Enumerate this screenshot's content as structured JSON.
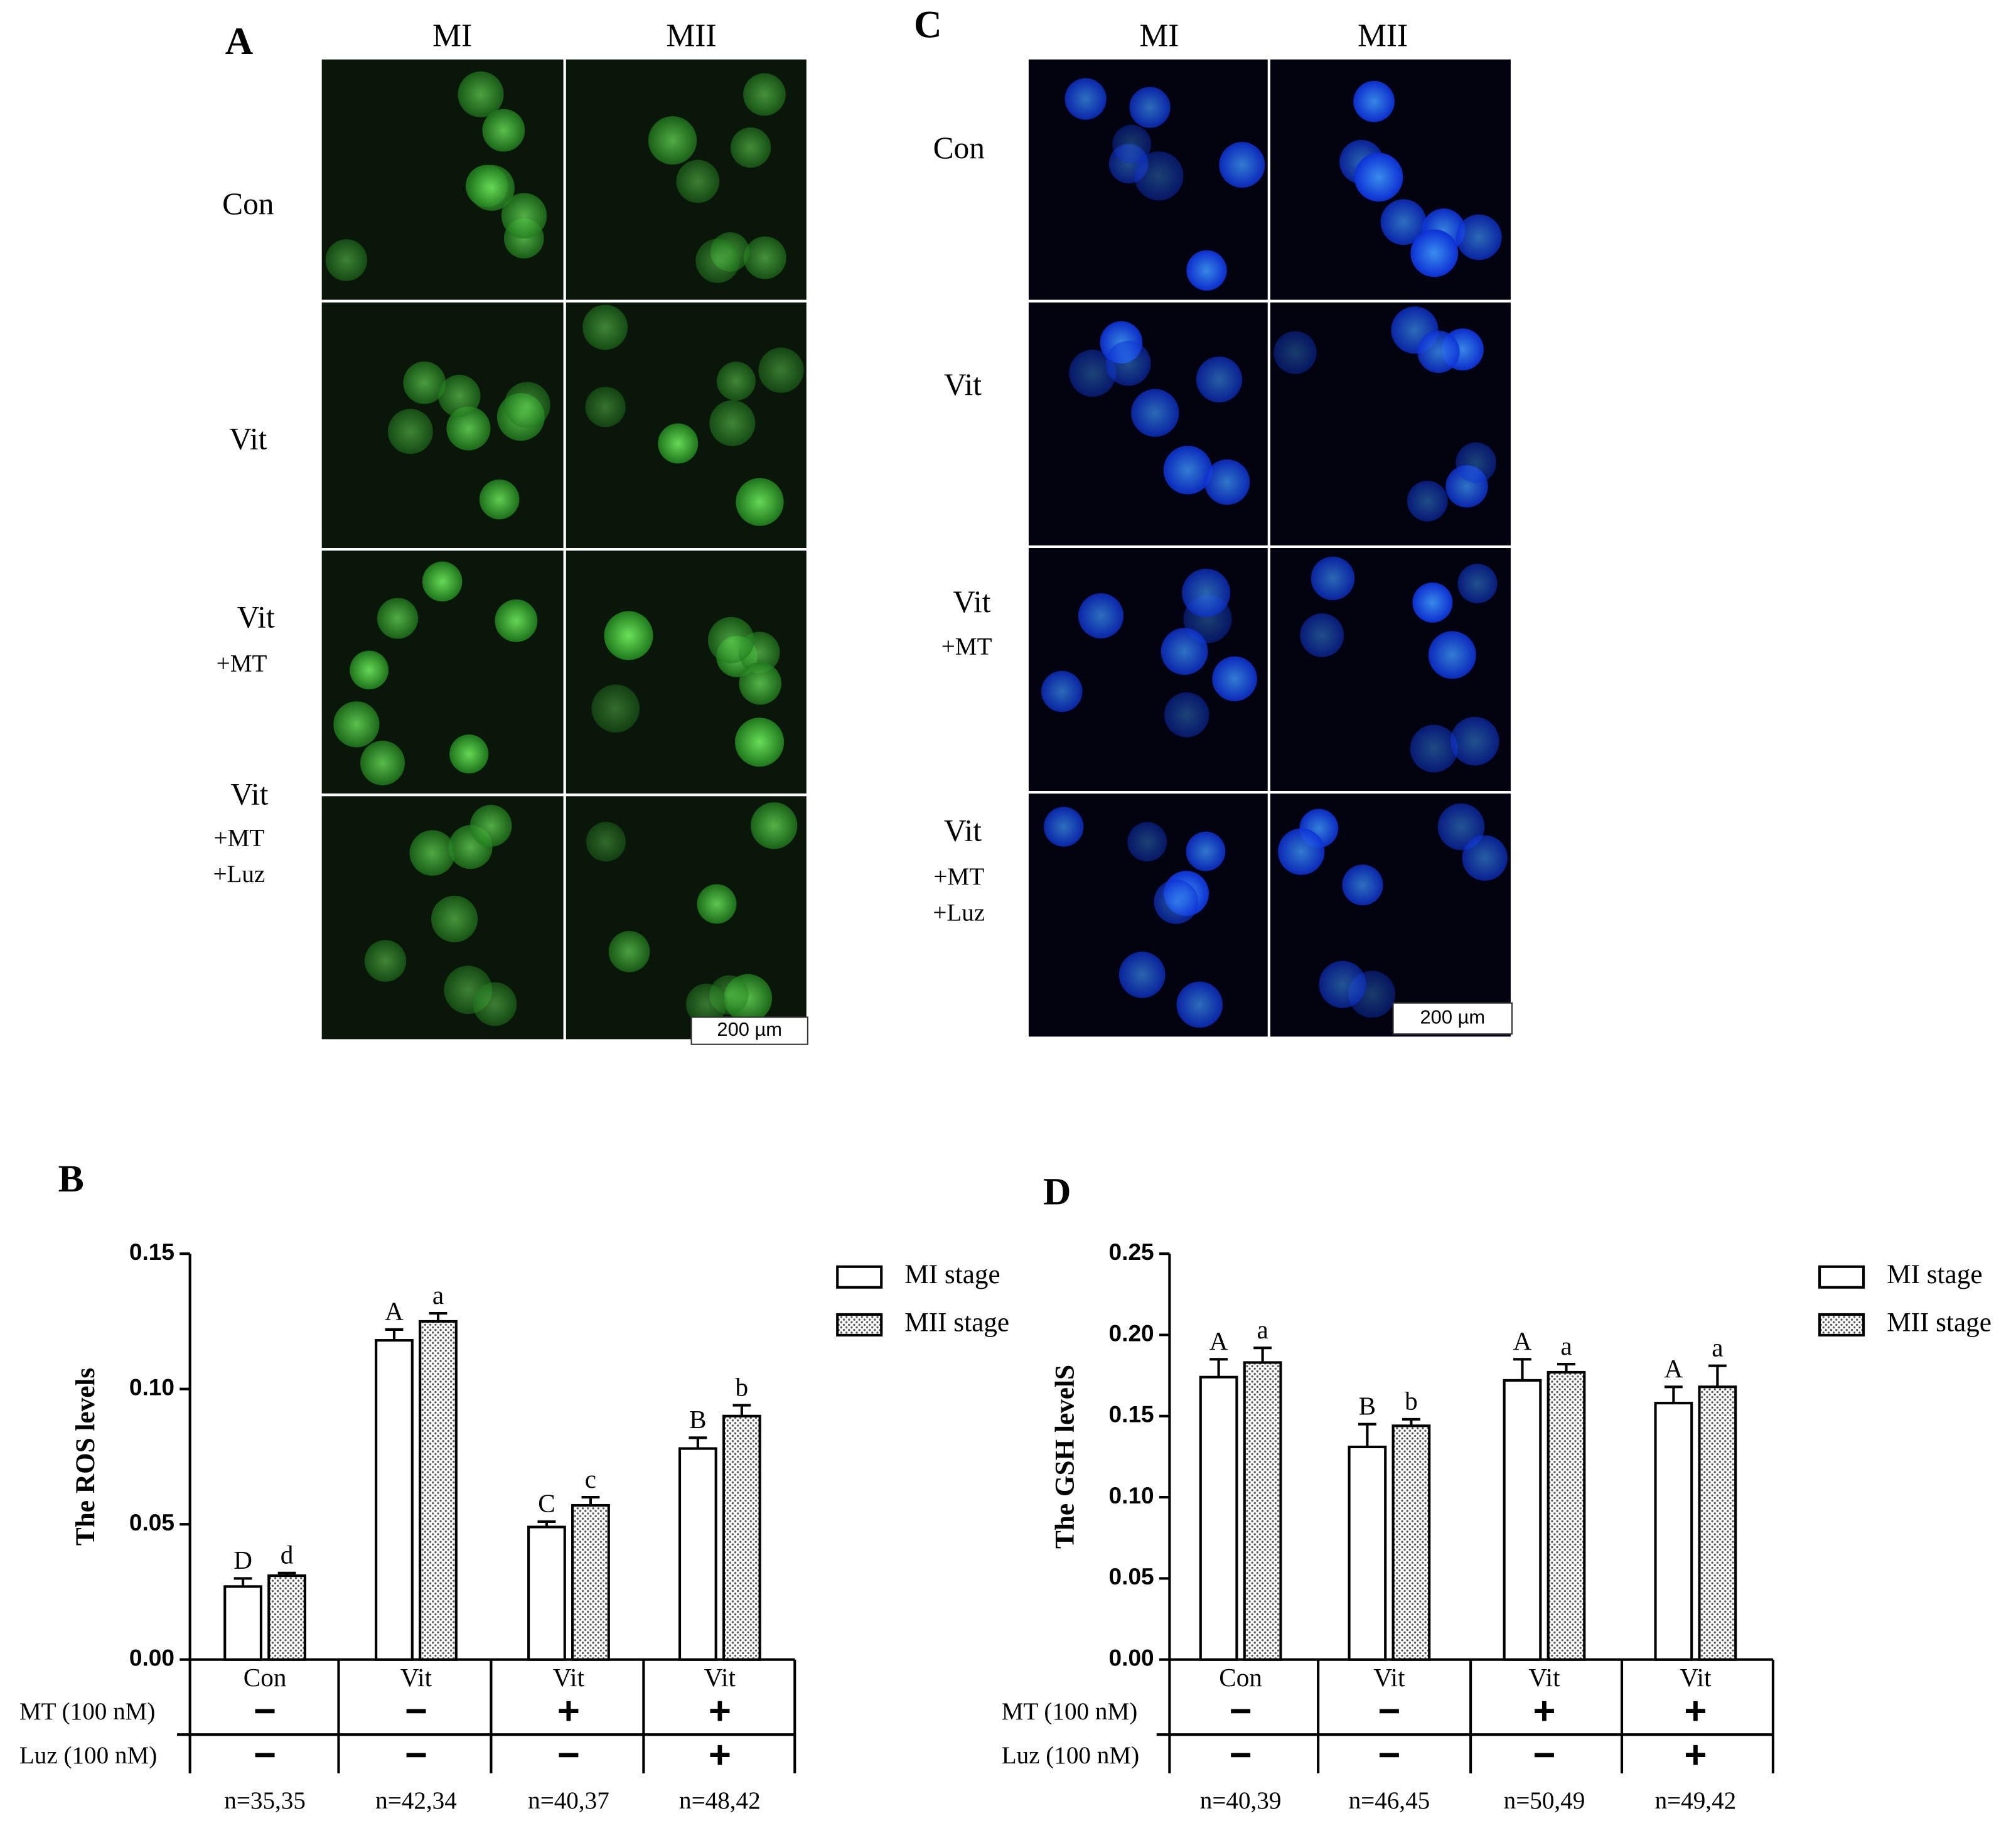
{
  "images": [
    {
      "label": "A",
      "columns": [
        "MI",
        "MII"
      ],
      "rows": [
        [
          "Con"
        ],
        [
          "Vit"
        ],
        [
          "Vit",
          "+MT"
        ],
        [
          "Vit",
          "+MT",
          "+Luz"
        ]
      ],
      "scale_bar": "200 µm",
      "stain": "green"
    },
    {
      "label": "C",
      "columns": [
        "MI",
        "MII"
      ],
      "rows": [
        [
          "Con"
        ],
        [
          "Vit"
        ],
        [
          "Vit",
          "+MT"
        ],
        [
          "Vit",
          "+MT",
          "+Luz"
        ]
      ],
      "scale_bar": "200 µm",
      "stain": "blue"
    }
  ],
  "chart_data": [
    {
      "type": "bar",
      "panel_label": "B",
      "y_label": "The ROS levels",
      "categories": [
        "Con",
        "Vit",
        "Vit",
        "Vit"
      ],
      "series": [
        {
          "name": "MI stage",
          "color": "#ffffff",
          "fill": "solid",
          "values": [
            0.027,
            0.118,
            0.049,
            0.078
          ],
          "errors": [
            0.003,
            0.004,
            0.002,
            0.004
          ],
          "letters": [
            "D",
            "A",
            "C",
            "B"
          ]
        },
        {
          "name": "MII stage",
          "color": "#ffffff",
          "fill": "dotted",
          "values": [
            0.031,
            0.125,
            0.057,
            0.09
          ],
          "errors": [
            0.001,
            0.003,
            0.003,
            0.004
          ],
          "letters": [
            "d",
            "a",
            "c",
            "b"
          ]
        }
      ],
      "ylim": [
        0,
        0.15
      ],
      "yticks": [
        {
          "value": 0,
          "label": "0.00"
        },
        0.05,
        {
          "value": 0.1,
          "label": "0.10"
        },
        0.15
      ],
      "rows": [
        {
          "label": "MT (100 nM)",
          "marks": [
            "−",
            "−",
            "+",
            "+"
          ]
        },
        {
          "label": "Luz (100 nM)",
          "marks": [
            "−",
            "−",
            "−",
            "+"
          ]
        }
      ],
      "n_labels": [
        "n=35,35",
        "n=42,34",
        "n=40,37",
        "n=48,42"
      ]
    },
    {
      "type": "bar",
      "panel_label": "D",
      "y_label": "The GSH levelS",
      "categories": [
        "Con",
        "Vit",
        "Vit",
        "Vit"
      ],
      "series": [
        {
          "name": "MI stage",
          "color": "#ffffff",
          "fill": "solid",
          "values": [
            0.174,
            0.131,
            0.172,
            0.158
          ],
          "errors": [
            0.011,
            0.014,
            0.013,
            0.01
          ],
          "letters": [
            "A",
            "B",
            "A",
            "A"
          ]
        },
        {
          "name": "MII stage",
          "color": "#ffffff",
          "fill": "dotted",
          "values": [
            0.183,
            0.144,
            0.177,
            0.168
          ],
          "errors": [
            0.009,
            0.004,
            0.005,
            0.013
          ],
          "letters": [
            "a",
            "b",
            "a",
            "a"
          ]
        }
      ],
      "ylim": [
        0,
        0.25
      ],
      "yticks": [
        {
          "value": 0,
          "label": "0.00"
        },
        0.05,
        {
          "value": 0.1,
          "label": "0.10"
        },
        0.15,
        {
          "value": 0.2,
          "label": "0.20"
        },
        0.25
      ],
      "rows": [
        {
          "label": "MT (100 nM)",
          "marks": [
            "−",
            "−",
            "+",
            "+"
          ]
        },
        {
          "label": "Luz (100 nM)",
          "marks": [
            "−",
            "−",
            "−",
            "+"
          ]
        }
      ],
      "n_labels": [
        "n=40,39",
        "n=46,45",
        "n=50,49",
        "n=49,42"
      ]
    }
  ]
}
